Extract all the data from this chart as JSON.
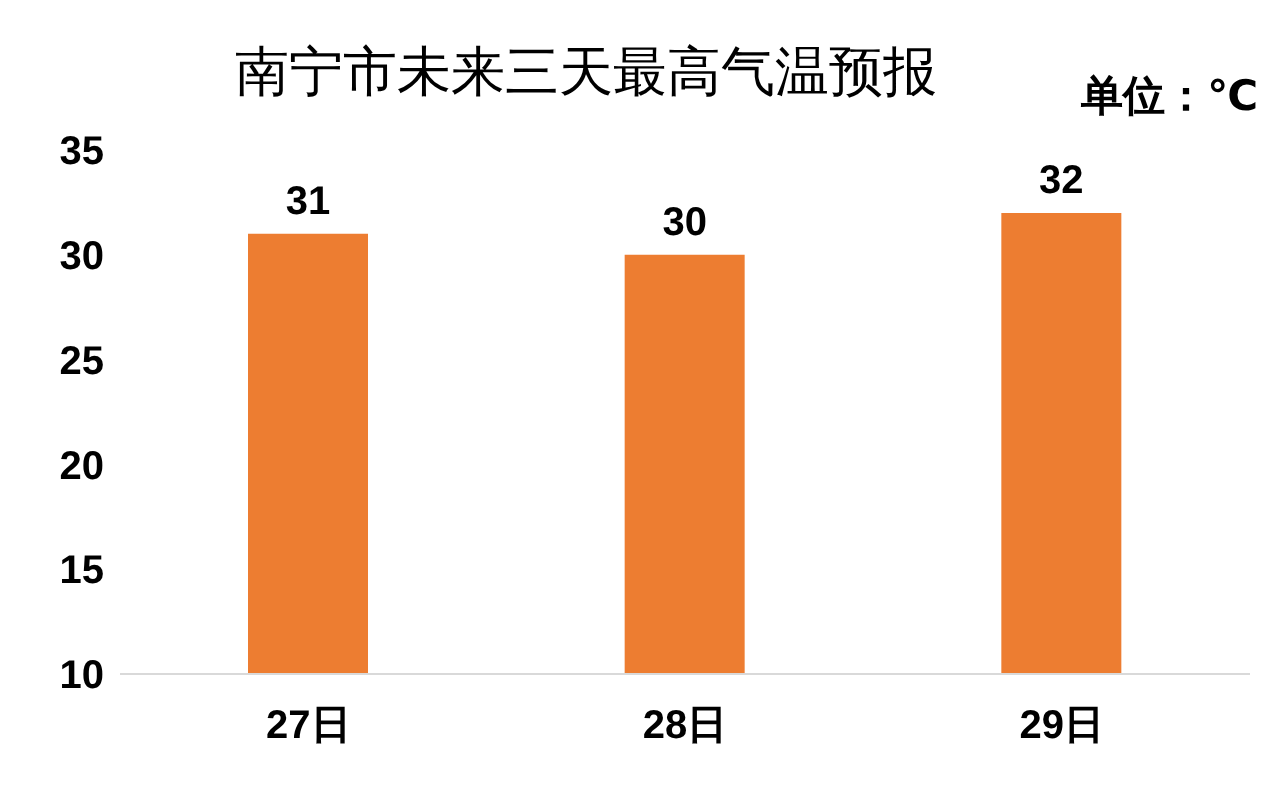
{
  "chart_data": {
    "type": "bar",
    "title": "南宁市未来三天最高气温预报",
    "annotations": [
      "单位：℃"
    ],
    "categories": [
      "27日",
      "28日",
      "29日"
    ],
    "values": [
      31,
      30,
      32
    ],
    "color": "#ed7d31",
    "ylim": [
      10,
      35
    ],
    "yticks": [
      10,
      15,
      20,
      25,
      30,
      35
    ],
    "grid": false,
    "data_labels": true
  }
}
